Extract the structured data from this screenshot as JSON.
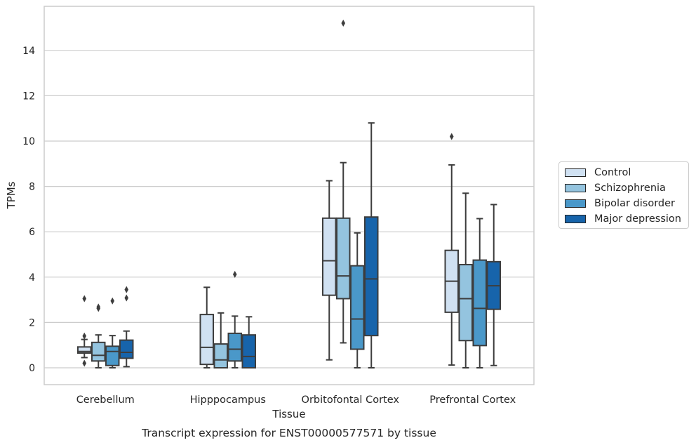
{
  "chart_data": {
    "type": "box",
    "title": "Transcript expression for ENST00000577571 by tissue",
    "xlabel": "Tissue",
    "ylabel": "TPMs",
    "ylim": [
      -0.75,
      15.8
    ],
    "yticks": [
      0,
      2,
      4,
      6,
      8,
      10,
      12,
      14
    ],
    "grid": true,
    "legend_position": "right",
    "categories": [
      "Cerebellum",
      "Hipppocampus",
      "Orbitofontal Cortex",
      "Prefrontal Cortex"
    ],
    "series": [
      {
        "name": "Control",
        "color": "#d0e1f2",
        "boxes": [
          {
            "whislo": 0.45,
            "q1": 0.65,
            "med": 0.72,
            "q3": 0.92,
            "whishi": 1.25,
            "fliers": [
              0.2,
              1.4,
              3.05
            ]
          },
          {
            "whislo": 0.0,
            "q1": 0.15,
            "med": 0.9,
            "q3": 2.35,
            "whishi": 3.55,
            "fliers": []
          },
          {
            "whislo": 0.35,
            "q1": 3.2,
            "med": 4.72,
            "q3": 6.6,
            "whishi": 8.25,
            "fliers": []
          },
          {
            "whislo": 0.12,
            "q1": 2.45,
            "med": 3.82,
            "q3": 5.18,
            "whishi": 8.95,
            "fliers": [
              10.2
            ]
          }
        ]
      },
      {
        "name": "Schizophrenia",
        "color": "#94c4df",
        "boxes": [
          {
            "whislo": 0.0,
            "q1": 0.3,
            "med": 0.55,
            "q3": 1.12,
            "whishi": 1.45,
            "fliers": [
              2.62,
              2.68
            ]
          },
          {
            "whislo": 0.0,
            "q1": 0.0,
            "med": 0.35,
            "q3": 1.05,
            "whishi": 2.42,
            "fliers": []
          },
          {
            "whislo": 1.1,
            "q1": 3.05,
            "med": 4.05,
            "q3": 6.6,
            "whishi": 9.05,
            "fliers": [
              15.2
            ]
          },
          {
            "whislo": 0.0,
            "q1": 1.2,
            "med": 3.05,
            "q3": 4.55,
            "whishi": 7.7,
            "fliers": []
          }
        ]
      },
      {
        "name": "Bipolar disorder",
        "color": "#4a98c9",
        "boxes": [
          {
            "whislo": 0.0,
            "q1": 0.1,
            "med": 0.72,
            "q3": 0.95,
            "whishi": 1.42,
            "fliers": [
              2.95
            ]
          },
          {
            "whislo": 0.0,
            "q1": 0.3,
            "med": 0.82,
            "q3": 1.52,
            "whishi": 2.28,
            "fliers": [
              4.12
            ]
          },
          {
            "whislo": 0.0,
            "q1": 0.82,
            "med": 2.15,
            "q3": 4.5,
            "whishi": 5.95,
            "fliers": []
          },
          {
            "whislo": 0.0,
            "q1": 0.98,
            "med": 2.62,
            "q3": 4.75,
            "whishi": 6.58,
            "fliers": []
          }
        ]
      },
      {
        "name": "Major depression",
        "color": "#1764ab",
        "boxes": [
          {
            "whislo": 0.05,
            "q1": 0.42,
            "med": 0.68,
            "q3": 1.22,
            "whishi": 1.62,
            "fliers": [
              3.08,
              3.45
            ]
          },
          {
            "whislo": 0.0,
            "q1": 0.0,
            "med": 0.5,
            "q3": 1.45,
            "whishi": 2.25,
            "fliers": []
          },
          {
            "whislo": 0.0,
            "q1": 1.42,
            "med": 3.92,
            "q3": 6.65,
            "whishi": 10.8,
            "fliers": []
          },
          {
            "whislo": 0.1,
            "q1": 2.58,
            "med": 3.62,
            "q3": 4.68,
            "whishi": 7.2,
            "fliers": []
          }
        ]
      }
    ]
  }
}
